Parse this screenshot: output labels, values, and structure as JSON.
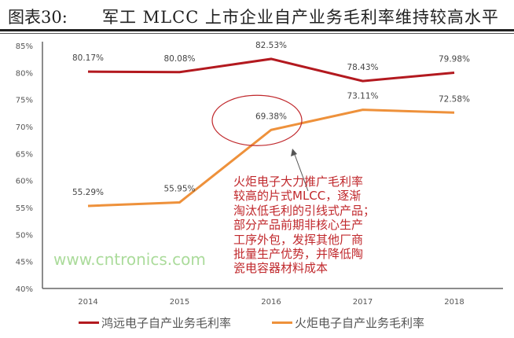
{
  "header": {
    "figure_number": "图表30:",
    "title": "军工 MLCC 上市企业自产业务毛利率维持较高水平"
  },
  "chart_data": {
    "type": "line",
    "title": "军工 MLCC 上市企业自产业务毛利率维持较高水平",
    "categories": [
      "2014",
      "2015",
      "2016",
      "2017",
      "2018"
    ],
    "ylim": [
      40,
      85
    ],
    "yticks": [
      "40%",
      "45%",
      "50%",
      "55%",
      "60%",
      "65%",
      "70%",
      "75%",
      "80%",
      "85%"
    ],
    "grid": false,
    "legend_placement": "bottom",
    "series": [
      {
        "name": "鸿远电子自产业务毛利率",
        "values": [
          80.17,
          80.08,
          82.53,
          78.43,
          79.98
        ],
        "labels": [
          "80.17%",
          "80.08%",
          "82.53%",
          "78.43%",
          "79.98%"
        ],
        "color": "#b3191f"
      },
      {
        "name": "火炬电子自产业务毛利率",
        "values": [
          55.29,
          55.95,
          69.38,
          73.11,
          72.58
        ],
        "labels": [
          "55.29%",
          "55.95%",
          "69.38%",
          "73.11%",
          "72.58%"
        ],
        "color": "#ee913b"
      }
    ],
    "annotation": {
      "text_lines": [
        "火炬电子大力推广毛利率",
        "较高的片式MLCC，逐渐",
        "淘汰低毛利的引线式产品；",
        "部分产品前期非核心生产",
        "工序外包，发挥其他厂商",
        "批量生产优势，并降低陶",
        "瓷电容器材料成本"
      ],
      "highlight_category": "2016",
      "highlight_series": 1,
      "color": "#c0282c"
    }
  },
  "watermark": "www.cntronics.com"
}
